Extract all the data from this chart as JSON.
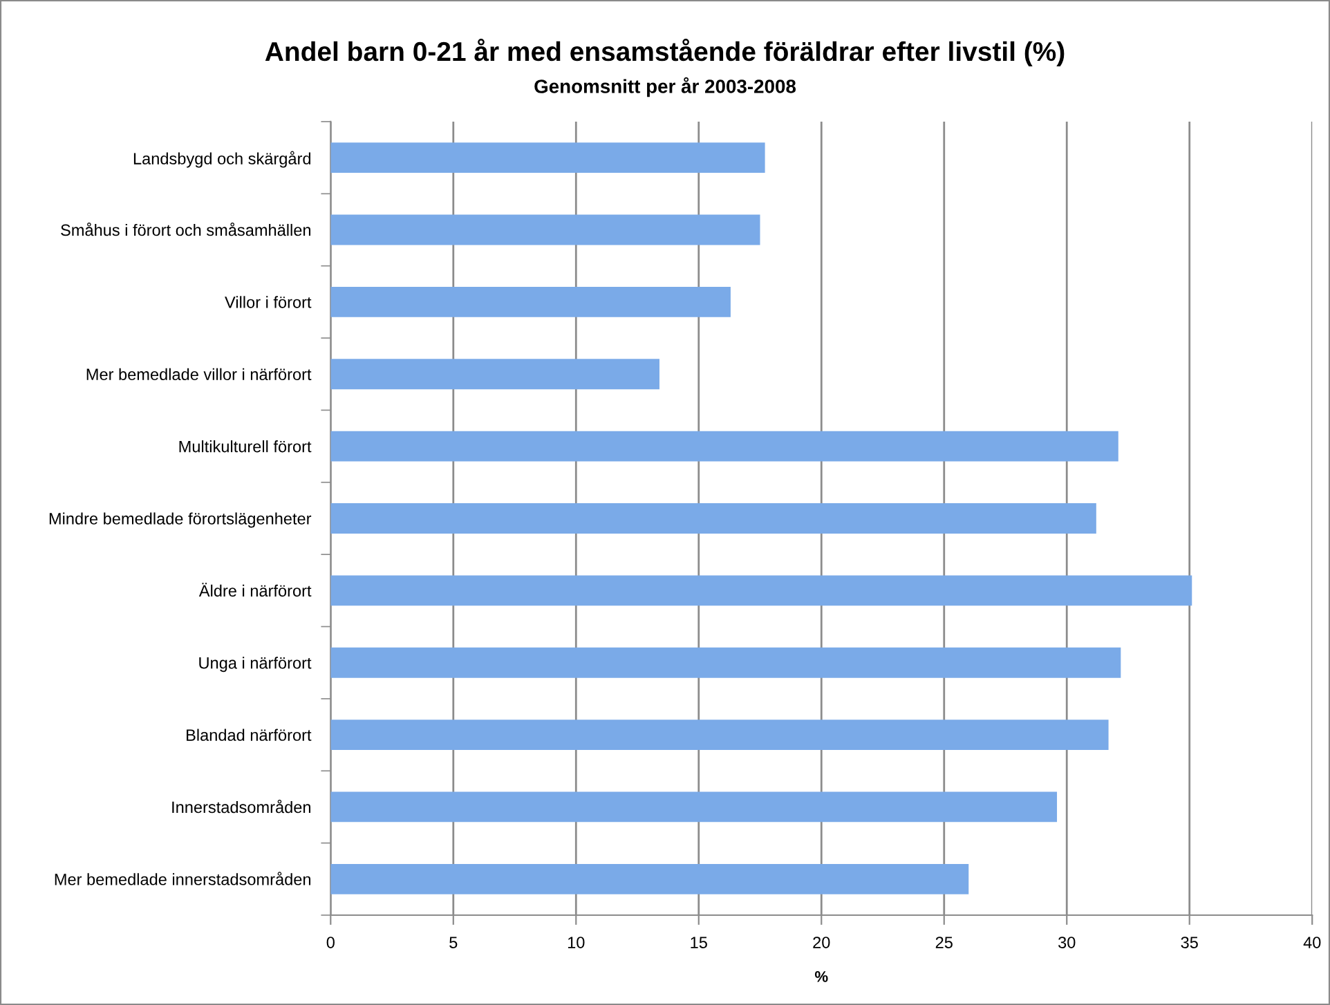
{
  "chart_data": {
    "type": "bar",
    "orientation": "horizontal",
    "title": "Andel barn 0-21 år med ensamstående föräldrar efter livstil (%)",
    "subtitle": "Genomsnitt per år 2003-2008",
    "xlabel": "%",
    "categories": [
      "Landsbygd och skärgård",
      "Småhus i förort och småsamhällen",
      "Villor i förort",
      "Mer bemedlade villor i närförort",
      "Multikulturell förort",
      "Mindre bemedlade förortslägenheter",
      "Äldre i närförort",
      "Unga i närförort",
      "Blandad närförort",
      "Innerstadsområden",
      "Mer bemedlade innerstadsområden"
    ],
    "values": [
      17.7,
      17.5,
      16.3,
      13.4,
      32.1,
      31.2,
      35.1,
      32.2,
      31.7,
      29.6,
      26.0
    ],
    "color": "#7aaae8",
    "xlim": [
      0,
      40
    ],
    "xticks": [
      0,
      5,
      10,
      15,
      20,
      25,
      30,
      35,
      40
    ],
    "grid": "x",
    "legend": false
  }
}
